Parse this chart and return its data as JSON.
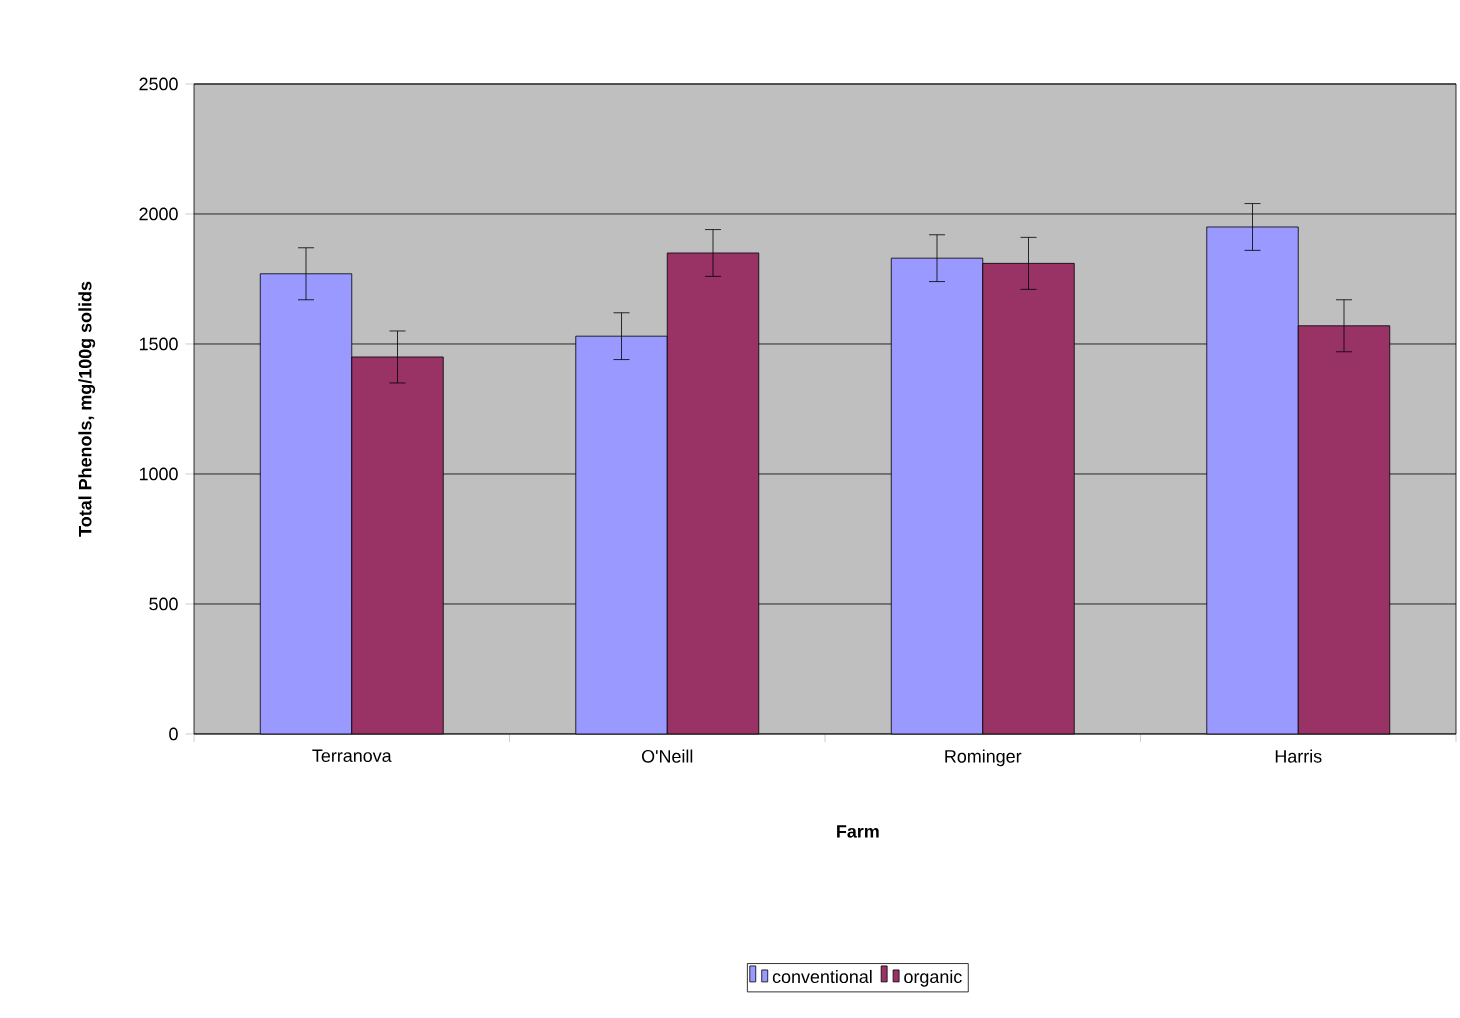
{
  "chart_data": {
    "type": "bar",
    "xlabel": "Farm",
    "ylabel": "Total Phenols, mg/100g solids",
    "categories": [
      "Terranova",
      "O'Neill",
      "Rominger",
      "Harris"
    ],
    "series": [
      {
        "name": "conventional",
        "color": "#9999ff",
        "values": [
          1770,
          1530,
          1830,
          1950
        ],
        "errors": [
          100,
          90,
          90,
          90
        ]
      },
      {
        "name": "organic",
        "color": "#993366",
        "values": [
          1450,
          1850,
          1810,
          1570
        ],
        "errors": [
          100,
          90,
          100,
          100
        ]
      }
    ],
    "ylim": [
      0,
      2500
    ],
    "yticks": [
      0,
      500,
      1000,
      1500,
      2000,
      2500
    ],
    "grid": "y",
    "legend": "bottom"
  }
}
